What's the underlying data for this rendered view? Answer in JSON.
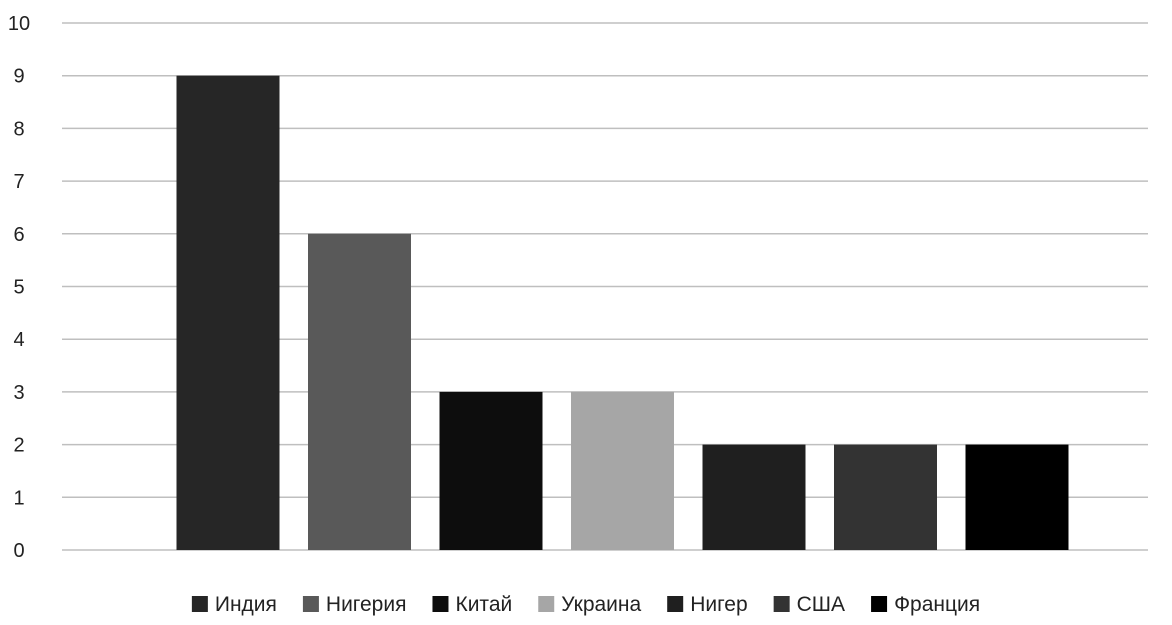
{
  "chart_data": {
    "type": "bar",
    "title": "",
    "xlabel": "",
    "ylabel": "",
    "ylim": [
      0,
      10
    ],
    "yticks": [
      0,
      1,
      2,
      3,
      4,
      5,
      6,
      7,
      8,
      9,
      10
    ],
    "grid": true,
    "legend_position": "bottom",
    "series": [
      {
        "name": "Индия",
        "value": 9,
        "color": "#262626"
      },
      {
        "name": "Нигерия",
        "value": 6,
        "color": "#595959"
      },
      {
        "name": "Китай",
        "value": 3,
        "color": "#0d0d0d"
      },
      {
        "name": "Украина",
        "value": 3,
        "color": "#a6a6a6"
      },
      {
        "name": "Нигер",
        "value": 2,
        "color": "#1f1f1f"
      },
      {
        "name": "США",
        "value": 2,
        "color": "#333333"
      },
      {
        "name": "Франция",
        "value": 2,
        "color": "#000000"
      }
    ]
  }
}
